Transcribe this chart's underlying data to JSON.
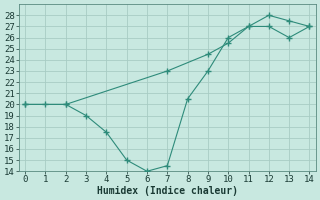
{
  "xlabel": "Humidex (Indice chaleur)",
  "line1_x": [
    0,
    1,
    2,
    3,
    4,
    5,
    6,
    7,
    8,
    9,
    10,
    11,
    12,
    13,
    14
  ],
  "line1_y": [
    20,
    20,
    20,
    19,
    17.5,
    15,
    14,
    14.5,
    20.5,
    23,
    26,
    27,
    28,
    27.5,
    27
  ],
  "line2_x": [
    0,
    2,
    7,
    9,
    10,
    11,
    12,
    13,
    14
  ],
  "line2_y": [
    20,
    20,
    23,
    24.5,
    25.5,
    27,
    27,
    26,
    27
  ],
  "color": "#2e8b7a",
  "bg_color": "#c8e8e0",
  "grid_color": "#a8ccc4",
  "ylim": [
    14,
    29
  ],
  "xlim": [
    -0.3,
    14.3
  ],
  "yticks": [
    14,
    15,
    16,
    17,
    18,
    19,
    20,
    21,
    22,
    23,
    24,
    25,
    26,
    27,
    28
  ],
  "xticks": [
    0,
    1,
    2,
    3,
    4,
    5,
    6,
    7,
    8,
    9,
    10,
    11,
    12,
    13,
    14
  ],
  "marker": "+",
  "markersize": 4,
  "linewidth": 0.8,
  "fontsize": 6.5
}
